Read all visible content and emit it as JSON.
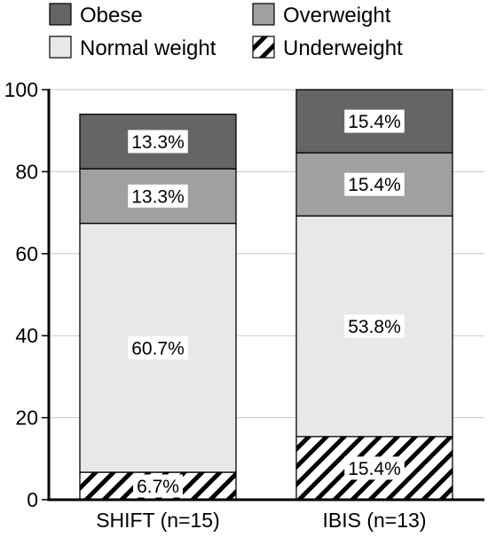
{
  "chart_data": {
    "type": "bar",
    "stacked": true,
    "categories": [
      "SHIFT (n=15)",
      "IBIS (n=13)"
    ],
    "series": [
      {
        "name": "Underweight",
        "values": [
          6.7,
          15.4
        ],
        "labels": [
          "6.7%",
          "15.4%"
        ],
        "color": "#ffffff",
        "pattern": "diagonal-hatch"
      },
      {
        "name": "Normal weight",
        "values": [
          60.7,
          53.8
        ],
        "labels": [
          "60.7%",
          "53.8%"
        ],
        "color": "#e8e8e8"
      },
      {
        "name": "Overweight",
        "values": [
          13.3,
          15.4
        ],
        "labels": [
          "13.3%",
          "15.4%"
        ],
        "color": "#a0a0a0"
      },
      {
        "name": "Obese",
        "values": [
          13.3,
          15.4
        ],
        "labels": [
          "13.3%",
          "15.4%"
        ],
        "color": "#656565"
      }
    ],
    "legend": {
      "placement": "top",
      "entries": [
        "Obese",
        "Overweight",
        "Normal weight",
        "Underweight"
      ]
    },
    "ylim": [
      0,
      100
    ],
    "yticks": [
      "0",
      "20",
      "40",
      "60",
      "80",
      "100"
    ],
    "ytick_values": [
      0,
      20,
      40,
      60,
      80,
      100
    ],
    "grid": true,
    "title": "",
    "xlabel": "",
    "ylabel": ""
  }
}
